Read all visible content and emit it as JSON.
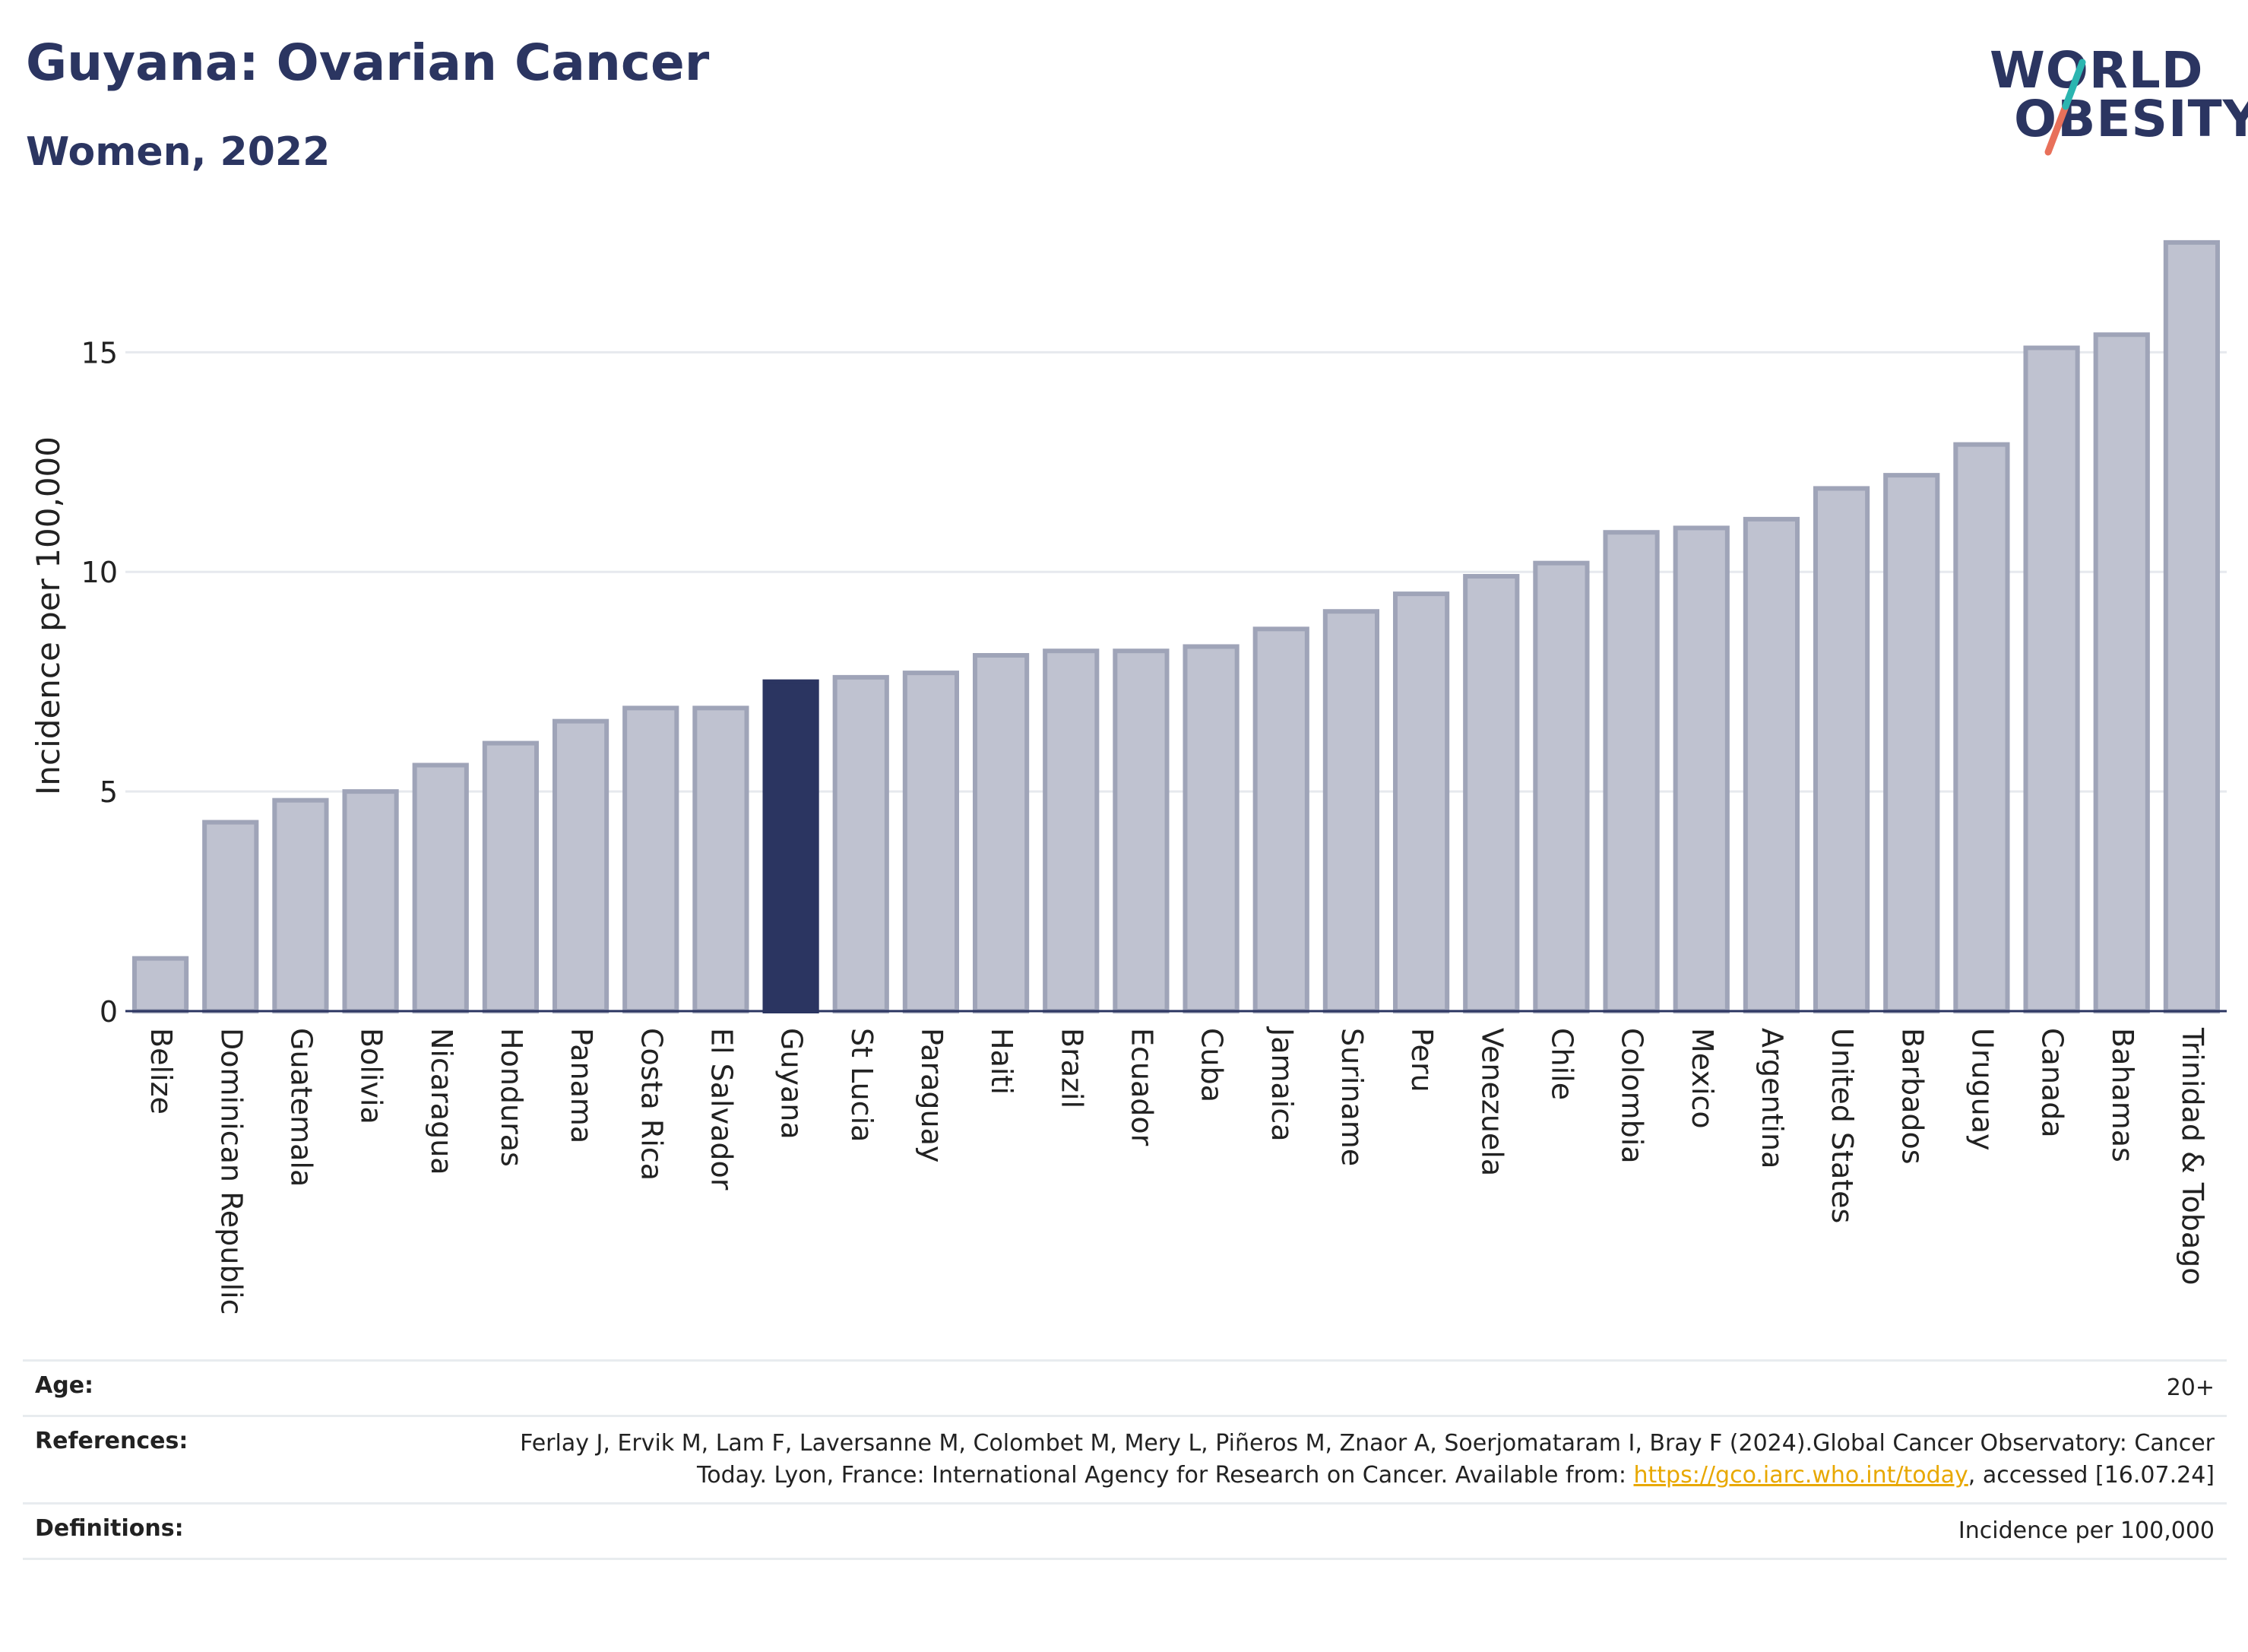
{
  "header": {
    "title": "Guyana: Ovarian Cancer",
    "subtitle": "Women, 2022"
  },
  "logo": {
    "line1": "WORLD",
    "line2": "OBESITY",
    "accent_teal": "#2bb5b0",
    "accent_red": "#e8705a"
  },
  "chart_data": {
    "type": "bar",
    "ylabel": "Incidence per 100,000",
    "ylim": [
      0,
      18
    ],
    "yticks": [
      0,
      5,
      10,
      15
    ],
    "grid": true,
    "categories": [
      "Belize",
      "Dominican Republic",
      "Guatemala",
      "Bolivia",
      "Nicaragua",
      "Honduras",
      "Panama",
      "Costa Rica",
      "El Salvador",
      "Guyana",
      "St Lucia",
      "Paraguay",
      "Haiti",
      "Brazil",
      "Ecuador",
      "Cuba",
      "Jamaica",
      "Suriname",
      "Peru",
      "Venezuela",
      "Chile",
      "Colombia",
      "Mexico",
      "Argentina",
      "United States",
      "Barbados",
      "Uruguay",
      "Canada",
      "Bahamas",
      "Trinidad & Tobago"
    ],
    "values": [
      1.2,
      4.3,
      4.8,
      5.0,
      5.6,
      6.1,
      6.6,
      6.9,
      6.9,
      7.5,
      7.6,
      7.7,
      8.1,
      8.2,
      8.2,
      8.3,
      8.7,
      9.1,
      9.5,
      9.9,
      10.2,
      10.9,
      11.0,
      11.2,
      11.9,
      12.2,
      12.9,
      15.1,
      15.4,
      17.5
    ],
    "highlight": "Guyana",
    "colors": {
      "bar": "#bfc2d0",
      "bar_border": "#9fa4b8",
      "highlight": "#2b3561"
    }
  },
  "footer": {
    "age": {
      "label": "Age:",
      "value": "20+"
    },
    "references": {
      "label": "References:",
      "text_before": "Ferlay J, Ervik M, Lam F, Laversanne M, Colombet M, Mery L, Piñeros M, Znaor A, Soerjomataram I, Bray F (2024).Global Cancer Observatory: Cancer Today. Lyon, France: International Agency for Research on Cancer. Available from: ",
      "link": "https://gco.iarc.who.int/today",
      "text_after": ", accessed [16.07.24]"
    },
    "definitions": {
      "label": "Definitions:",
      "value": "Incidence per 100,000"
    }
  }
}
